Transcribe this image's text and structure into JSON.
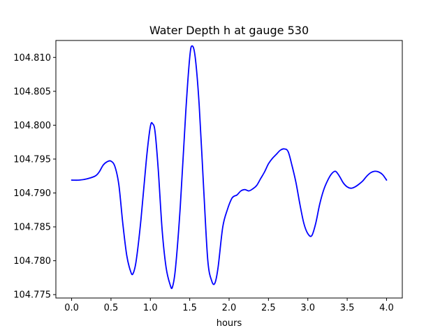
{
  "chart_data": {
    "type": "line",
    "title": "Water Depth h at gauge 530",
    "xlabel": "hours",
    "ylabel": "",
    "xlim": [
      -0.2,
      4.2
    ],
    "ylim": [
      104.7745,
      104.8125
    ],
    "xticks": [
      0.0,
      0.5,
      1.0,
      1.5,
      2.0,
      2.5,
      3.0,
      3.5,
      4.0
    ],
    "xtick_labels": [
      "0.0",
      "0.5",
      "1.0",
      "1.5",
      "2.0",
      "2.5",
      "3.0",
      "3.5",
      "4.0"
    ],
    "yticks": [
      104.775,
      104.78,
      104.785,
      104.79,
      104.795,
      104.8,
      104.805,
      104.81
    ],
    "ytick_labels": [
      "104.775",
      "104.780",
      "104.785",
      "104.790",
      "104.795",
      "104.800",
      "104.805",
      "104.810"
    ],
    "grid": false,
    "legend": "none",
    "series": [
      {
        "color": "#0000ff",
        "x": [
          0.0,
          0.1,
          0.2,
          0.3,
          0.35,
          0.4,
          0.45,
          0.5,
          0.55,
          0.6,
          0.65,
          0.7,
          0.75,
          0.78,
          0.82,
          0.88,
          0.95,
          1.0,
          1.03,
          1.06,
          1.1,
          1.15,
          1.2,
          1.25,
          1.28,
          1.32,
          1.38,
          1.45,
          1.5,
          1.53,
          1.57,
          1.62,
          1.68,
          1.73,
          1.78,
          1.82,
          1.86,
          1.92,
          1.98,
          2.03,
          2.06,
          2.1,
          2.15,
          2.2,
          2.25,
          2.3,
          2.35,
          2.4,
          2.45,
          2.5,
          2.55,
          2.6,
          2.65,
          2.7,
          2.75,
          2.8,
          2.85,
          2.9,
          2.95,
          3.0,
          3.05,
          3.1,
          3.15,
          3.2,
          3.25,
          3.3,
          3.35,
          3.4,
          3.45,
          3.5,
          3.55,
          3.6,
          3.65,
          3.7,
          3.75,
          3.8,
          3.85,
          3.9,
          3.95,
          4.0
        ],
        "y": [
          104.7919,
          104.7919,
          104.7921,
          104.7925,
          104.7931,
          104.7941,
          104.7946,
          104.7947,
          104.7939,
          104.7912,
          104.7855,
          104.7808,
          104.7784,
          104.7781,
          104.78,
          104.786,
          104.795,
          104.7998,
          104.8002,
          104.799,
          104.7935,
          104.7845,
          104.779,
          104.7765,
          104.7761,
          104.779,
          104.788,
          104.802,
          104.81,
          104.8117,
          104.81,
          104.803,
          104.79,
          104.78,
          104.777,
          104.7767,
          104.779,
          104.785,
          104.7876,
          104.7891,
          104.7895,
          104.7897,
          104.7903,
          104.7905,
          104.7903,
          104.7906,
          104.7911,
          104.7921,
          104.7931,
          104.7943,
          104.7951,
          104.7957,
          104.7963,
          104.7965,
          104.7961,
          104.794,
          104.7915,
          104.7883,
          104.7855,
          104.784,
          104.7837,
          104.7855,
          104.7883,
          104.7904,
          104.7918,
          104.7928,
          104.7932,
          104.7925,
          104.7915,
          104.7909,
          104.7907,
          104.7909,
          104.7913,
          104.7918,
          104.7925,
          104.793,
          104.7932,
          104.7931,
          104.7927,
          104.7919
        ]
      }
    ]
  }
}
